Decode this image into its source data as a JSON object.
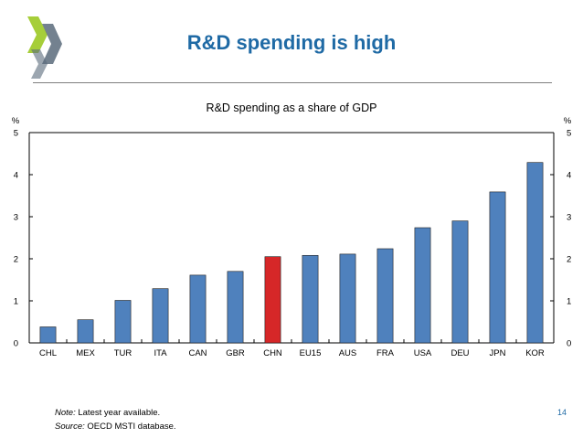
{
  "slide": {
    "title": "R&D spending is high",
    "note_label": "Note:",
    "note_text": "Latest year available.",
    "source_label": "Source:",
    "source_text": "OECD MSTI database.",
    "page_number": "14"
  },
  "colors": {
    "title": "#1f6aa5",
    "bar": "#4f81bd",
    "highlight": "#d62728",
    "logo_light": "#a6ce39",
    "logo_dark": "#5a6b7b"
  },
  "chart_data": {
    "type": "bar",
    "title": "R&D spending as a share of GDP",
    "ylabel_left": "%",
    "ylabel_right": "%",
    "ylim": [
      0,
      5
    ],
    "yticks": [
      "0",
      "1",
      "2",
      "3",
      "4",
      "5"
    ],
    "grid": false,
    "categories": [
      "CHL",
      "MEX",
      "TUR",
      "ITA",
      "CAN",
      "GBR",
      "CHN",
      "EU15",
      "AUS",
      "FRA",
      "USA",
      "DEU",
      "JPN",
      "KOR"
    ],
    "values": [
      0.38,
      0.55,
      1.01,
      1.29,
      1.61,
      1.7,
      2.05,
      2.08,
      2.11,
      2.24,
      2.74,
      2.9,
      3.59,
      4.29
    ],
    "highlight": "CHN"
  }
}
